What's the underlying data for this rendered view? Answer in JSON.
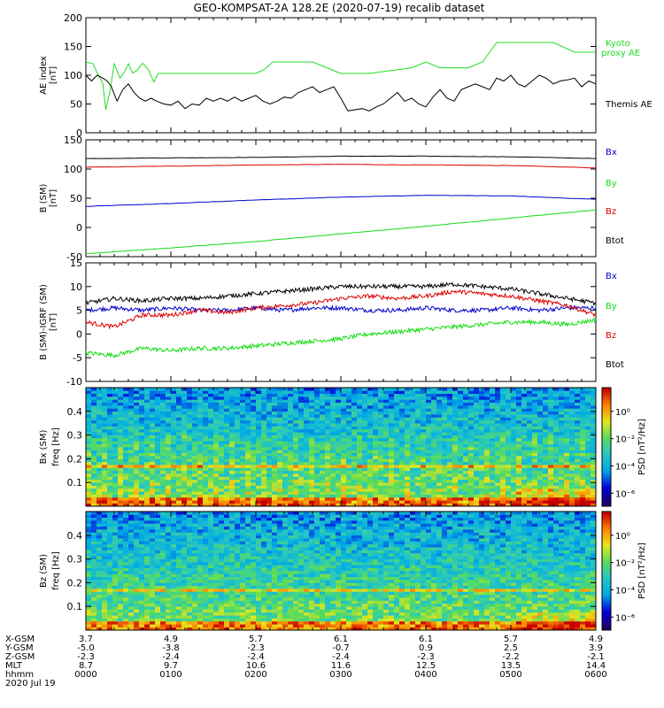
{
  "title": "GEO-KOMPSAT-2A 128.2E (2020-07-19) recalib dataset",
  "colors": {
    "black": "#000000",
    "red": "#dd0000",
    "green": "#11dd11",
    "blue": "#0000cc",
    "kyoto": "#22dd22"
  },
  "chart_data": [
    {
      "type": "line",
      "id": "ae",
      "ylabel": "AE index",
      "yunit": "[nT]",
      "ylim": [
        0,
        200
      ],
      "yticks": [
        0,
        50,
        100,
        150,
        200
      ],
      "xlim": [
        0,
        360
      ],
      "series": [
        {
          "name": "Kyoto proxy AE",
          "color": "#22dd22",
          "x": [
            0,
            5,
            8,
            10,
            12,
            14,
            17,
            20,
            24,
            27,
            30,
            33,
            36,
            40,
            44,
            48,
            51,
            54,
            60,
            120,
            126,
            132,
            160,
            180,
            190,
            200,
            230,
            240,
            250,
            270,
            280,
            290,
            300,
            330,
            345,
            360
          ],
          "y": [
            123,
            120,
            104,
            95,
            85,
            40,
            72,
            120,
            95,
            105,
            120,
            104,
            108,
            121,
            110,
            88,
            103,
            103,
            103,
            103,
            110,
            123,
            123,
            103,
            103,
            103,
            113,
            123,
            113,
            113,
            123,
            157,
            157,
            157,
            140,
            140
          ]
        },
        {
          "name": "Themis AE",
          "color": "#000000",
          "x": [
            0,
            4,
            8,
            12,
            15,
            18,
            22,
            26,
            30,
            34,
            38,
            42,
            46,
            50,
            55,
            60,
            65,
            70,
            75,
            80,
            85,
            90,
            95,
            100,
            105,
            110,
            115,
            120,
            125,
            130,
            135,
            140,
            145,
            150,
            155,
            160,
            165,
            170,
            175,
            180,
            185,
            190,
            195,
            200,
            205,
            210,
            215,
            220,
            225,
            230,
            235,
            240,
            245,
            250,
            255,
            260,
            265,
            270,
            275,
            280,
            285,
            290,
            295,
            300,
            305,
            310,
            315,
            320,
            325,
            330,
            335,
            340,
            345,
            350,
            355,
            360
          ],
          "y": [
            100,
            90,
            100,
            95,
            90,
            80,
            55,
            75,
            85,
            70,
            60,
            55,
            60,
            55,
            50,
            48,
            55,
            42,
            50,
            48,
            60,
            55,
            60,
            55,
            62,
            55,
            60,
            65,
            55,
            50,
            55,
            62,
            60,
            70,
            75,
            80,
            70,
            75,
            80,
            60,
            38,
            40,
            42,
            38,
            45,
            50,
            60,
            70,
            55,
            60,
            50,
            45,
            62,
            75,
            60,
            55,
            75,
            80,
            85,
            80,
            75,
            95,
            90,
            100,
            85,
            80,
            90,
            100,
            95,
            85,
            90,
            92,
            95,
            80,
            90,
            85
          ]
        }
      ]
    },
    {
      "type": "line",
      "id": "bsm",
      "ylabel": "B (SM)",
      "yunit": "[nT]",
      "ylim": [
        -50,
        150
      ],
      "yticks": [
        -50,
        0,
        50,
        100,
        150
      ],
      "xlim": [
        0,
        360
      ],
      "series": [
        {
          "name": "Bx",
          "color": "#0000cc",
          "x": [
            0,
            60,
            120,
            180,
            240,
            300,
            360
          ],
          "y": [
            36,
            41,
            47,
            52,
            55,
            54,
            48
          ]
        },
        {
          "name": "By",
          "color": "#11dd11",
          "x": [
            0,
            60,
            120,
            180,
            240,
            300,
            360
          ],
          "y": [
            -45,
            -35,
            -24,
            -11,
            2,
            16,
            30
          ]
        },
        {
          "name": "Bz",
          "color": "#dd0000",
          "x": [
            0,
            60,
            120,
            180,
            240,
            300,
            360
          ],
          "y": [
            103,
            105,
            107,
            108,
            107,
            106,
            102
          ]
        },
        {
          "name": "Btot",
          "color": "#000000",
          "x": [
            0,
            60,
            120,
            180,
            240,
            300,
            360
          ],
          "y": [
            118,
            119,
            120,
            122,
            122,
            121,
            118
          ]
        }
      ]
    },
    {
      "type": "line",
      "id": "bigrf",
      "ylabel": "B (SM)-IGRF (SM)",
      "yunit": "[nT]",
      "ylim": [
        -10,
        15
      ],
      "yticks": [
        -10,
        -5,
        0,
        5,
        10,
        15
      ],
      "xlim": [
        0,
        360
      ],
      "series": [
        {
          "name": "Bx",
          "color": "#0000cc",
          "x": [
            0,
            20,
            40,
            60,
            80,
            100,
            120,
            140,
            160,
            180,
            200,
            220,
            240,
            260,
            280,
            300,
            320,
            340,
            360
          ],
          "y": [
            5,
            5.5,
            5,
            5.5,
            5,
            5,
            5.5,
            5,
            5.5,
            5.5,
            5,
            5,
            5.5,
            5,
            5,
            5.5,
            5,
            5.5,
            5.5
          ]
        },
        {
          "name": "By",
          "color": "#11dd11",
          "x": [
            0,
            20,
            40,
            60,
            80,
            100,
            120,
            140,
            160,
            180,
            200,
            220,
            240,
            260,
            280,
            300,
            320,
            340,
            360
          ],
          "y": [
            -4,
            -4.5,
            -3,
            -3.5,
            -3,
            -3,
            -2.5,
            -2,
            -1.5,
            -1,
            0,
            0.5,
            1,
            1.5,
            2,
            2.5,
            2.5,
            2,
            3
          ]
        },
        {
          "name": "Bz",
          "color": "#dd0000",
          "x": [
            0,
            20,
            40,
            60,
            80,
            100,
            120,
            140,
            160,
            180,
            200,
            220,
            240,
            260,
            280,
            300,
            320,
            340,
            360
          ],
          "y": [
            2.5,
            1.5,
            4,
            4,
            5,
            4.5,
            5.5,
            6,
            6.5,
            7.5,
            8,
            7.5,
            8,
            9,
            8.5,
            8,
            7,
            6,
            4
          ]
        },
        {
          "name": "Btot",
          "color": "#000000",
          "x": [
            0,
            20,
            40,
            60,
            80,
            100,
            120,
            140,
            160,
            180,
            200,
            220,
            240,
            260,
            280,
            300,
            320,
            340,
            360
          ],
          "y": [
            6.5,
            7.5,
            7,
            7.5,
            7.5,
            8,
            8.5,
            9,
            9.5,
            10,
            10,
            10,
            10,
            10.5,
            10,
            9.5,
            8.5,
            7.5,
            6.5
          ]
        }
      ]
    },
    {
      "type": "heatmap",
      "id": "bx-spec",
      "ylabel": "Bx (SM)",
      "ysub": "freq [Hz]",
      "ylim": [
        0,
        0.5
      ],
      "yticks": [
        0.1,
        0.2,
        0.3,
        0.4
      ],
      "colorbar": {
        "label": "PSD [nT²/Hz]",
        "ticks": [
          "10⁰",
          "10⁻²",
          "10⁻⁴",
          "10⁻⁶"
        ]
      }
    },
    {
      "type": "heatmap",
      "id": "bz-spec",
      "ylabel": "Bz (SM)",
      "ysub": "freq [Hz]",
      "ylim": [
        0,
        0.5
      ],
      "yticks": [
        0.1,
        0.2,
        0.3,
        0.4
      ],
      "colorbar": {
        "label": "PSD [nT²/Hz]",
        "ticks": [
          "10⁰",
          "10⁻²",
          "10⁻⁴",
          "10⁻⁶"
        ]
      }
    }
  ],
  "ephemeris": {
    "row_labels": [
      "X-GSM",
      "Y-GSM",
      "Z-GSM",
      "MLT",
      "hhmm"
    ],
    "date": "2020 Jul 19",
    "columns": [
      [
        "3.7",
        "-5.0",
        "-2.3",
        "8.7",
        "0000"
      ],
      [
        "4.9",
        "-3.8",
        "-2.4",
        "9.7",
        "0100"
      ],
      [
        "5.7",
        "-2.3",
        "-2.4",
        "10.6",
        "0200"
      ],
      [
        "6.1",
        "-0.7",
        "-2.4",
        "11.6",
        "0300"
      ],
      [
        "6.1",
        "0.9",
        "-2.3",
        "12.5",
        "0400"
      ],
      [
        "5.7",
        "2.5",
        "-2.2",
        "13.5",
        "0500"
      ],
      [
        "4.9",
        "3.9",
        "-2.1",
        "14.4",
        "0600"
      ]
    ]
  },
  "legend_labels": {
    "ae_kyoto": [
      "Kyoto",
      "proxy AE"
    ],
    "ae_themis": "Themis AE",
    "b_components": [
      "Bx",
      "By",
      "Bz",
      "Btot"
    ]
  }
}
